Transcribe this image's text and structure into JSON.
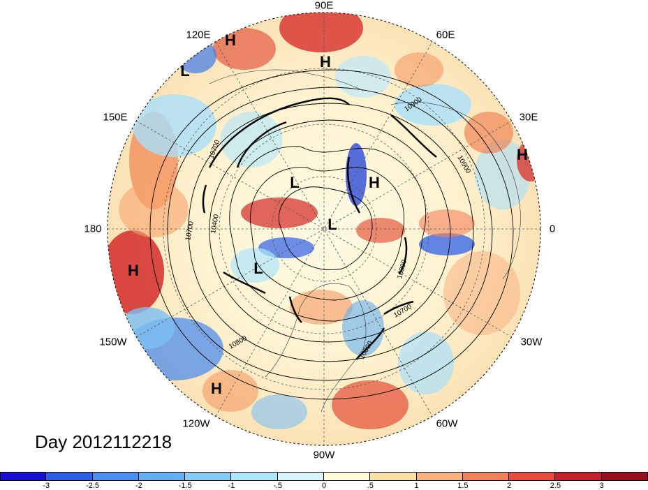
{
  "map": {
    "projection": "polar stereographic (north pole)",
    "lon_labels": [
      {
        "text": "90E",
        "key": "lon-90e"
      },
      {
        "text": "60E",
        "key": "lon-60e"
      },
      {
        "text": "30E",
        "key": "lon-30e"
      },
      {
        "text": "0",
        "key": "lon-0"
      },
      {
        "text": "30W",
        "key": "lon-30w"
      },
      {
        "text": "60W",
        "key": "lon-60w"
      },
      {
        "text": "90W",
        "key": "lon-90w"
      },
      {
        "text": "120W",
        "key": "lon-120w"
      },
      {
        "text": "150W",
        "key": "lon-150w"
      },
      {
        "text": "180",
        "key": "lon-180"
      },
      {
        "text": "150E",
        "key": "lon-150e"
      },
      {
        "text": "120E",
        "key": "lon-120e"
      }
    ],
    "pressure_centers": [
      "H",
      "L",
      "H",
      "L",
      "H",
      "L",
      "H",
      "L",
      "H",
      "H"
    ],
    "contour_labels": [
      "10900",
      "10900",
      "10700",
      "10700",
      "10400",
      "10700",
      "10800",
      "10700",
      "10800",
      "10300"
    ]
  },
  "title": "Day 2012112218",
  "colorbar": {
    "ticks": [
      "-3",
      "-2.5",
      "-2",
      "-1.5",
      "-1",
      "-.5",
      "0",
      ".5",
      "1",
      "1.5",
      "2",
      "2.5",
      "3"
    ],
    "colors": [
      "#1a0fd6",
      "#2f5fe8",
      "#4a8df0",
      "#62aef4",
      "#83cdf7",
      "#aee6fb",
      "#d8f4fd",
      "#fffbd9",
      "#fde1a4",
      "#f7b27d",
      "#f1815a",
      "#e84a3b",
      "#c8202a",
      "#98101e"
    ]
  }
}
